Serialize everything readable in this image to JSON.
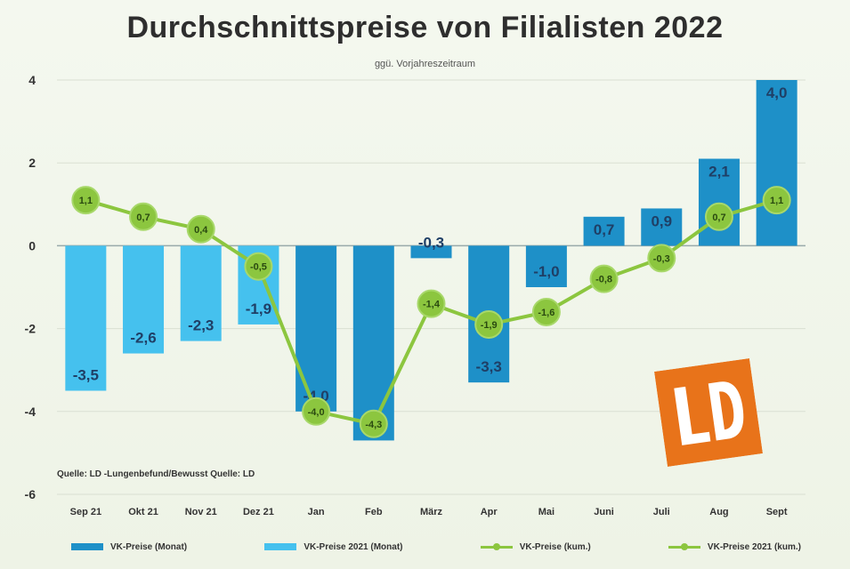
{
  "title": "Durchschnittspreise von Filialisten 2022",
  "subtitle": "ggü. Vorjahreszeitraum",
  "source": "Quelle: LD -Lungenbefund/Bewusst Quelle: LD",
  "legend": [
    {
      "label": "VK-Preise (Monat)",
      "type": "bar",
      "color": "#1e90c8"
    },
    {
      "label": "VK-Preise 2021 (Monat)",
      "type": "bar",
      "color": "#45c1ee"
    },
    {
      "label": "VK-Preise (kum.)",
      "type": "line",
      "color": "#8cc63f"
    },
    {
      "label": "VK-Preise 2021 (kum.)",
      "type": "line",
      "color": "#8cc63f"
    }
  ],
  "logo": {
    "text": "LD",
    "color": "#e8731a"
  },
  "chart_data": {
    "type": "bar",
    "title": "Durchschnittspreise von Filialisten 2022",
    "subtitle": "ggü. Vorjahreszeitraum",
    "xlabel": "",
    "ylabel": "",
    "ylim": [
      -6,
      4
    ],
    "yticks": [
      -6,
      -4,
      -2,
      0,
      2,
      4
    ],
    "grid": true,
    "legend_position": "bottom",
    "categories": [
      "Sep 21",
      "Okt 21",
      "Nov 21",
      "Dez 21",
      "Jan",
      "Feb",
      "März",
      "Apr",
      "Mai",
      "Juni",
      "Juli",
      "Aug",
      "Sept"
    ],
    "series": [
      {
        "name": "VK-Preise (Monat)",
        "type": "bar",
        "color": "#1e90c8",
        "values": [
          null,
          null,
          null,
          null,
          -4.0,
          -4.7,
          -0.3,
          -3.3,
          -1.0,
          0.7,
          0.9,
          2.1,
          4.0
        ],
        "labels": [
          "",
          "",
          "",
          "",
          "-4,0",
          "-4,7",
          "-0,3",
          "-3,3",
          "-1,0",
          "0,7",
          "0,9",
          "2,1",
          "4,0"
        ]
      },
      {
        "name": "VK-Preise 2021 (Monat)",
        "type": "bar",
        "color": "#45c1ee",
        "values": [
          -3.5,
          -2.6,
          -2.3,
          -1.9,
          null,
          null,
          null,
          null,
          null,
          null,
          null,
          null,
          null
        ],
        "labels": [
          "-3,5",
          "-2,6",
          "-2,3",
          "-1,9",
          "",
          "",
          "",
          "",
          "",
          "",
          "",
          "",
          ""
        ]
      },
      {
        "name": "VK-Preise (kum.)",
        "type": "line",
        "color": "#8cc63f",
        "values": [
          1.1,
          0.7,
          0.4,
          -0.5,
          -4.0,
          -4.3,
          -1.4,
          -1.9,
          -1.6,
          -0.8,
          -0.3,
          0.7,
          1.1
        ],
        "labels": [
          "1,1",
          "0,7",
          "0,4",
          "-0,5",
          "-4,0",
          "-4,3",
          "-1,4",
          "-1,9",
          "-1,6",
          "-0,8",
          "-0,3",
          "0,7",
          "1,1"
        ]
      }
    ]
  }
}
